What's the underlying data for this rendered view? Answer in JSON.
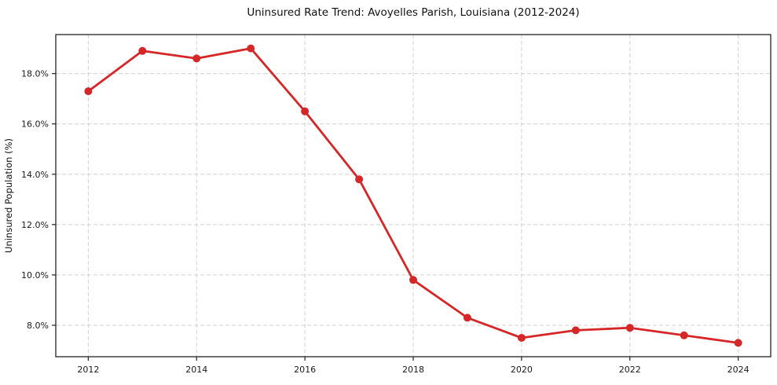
{
  "page": {
    "background": "#ffffff"
  },
  "chart_data": {
    "type": "line",
    "title": "Uninsured Rate Trend: Avoyelles Parish, Louisiana (2012-2024)",
    "xlabel": "",
    "ylabel": "Uninsured Population (%)",
    "x": [
      2012,
      2013,
      2014,
      2015,
      2016,
      2017,
      2018,
      2019,
      2020,
      2021,
      2022,
      2023,
      2024
    ],
    "series": [
      {
        "name": "Uninsured Rate",
        "values": [
          17.3,
          18.9,
          18.6,
          19.0,
          16.5,
          13.8,
          9.8,
          8.3,
          7.5,
          7.8,
          7.9,
          7.6,
          7.3
        ]
      }
    ],
    "xlim": [
      2011.4,
      2024.6
    ],
    "ylim": [
      6.75,
      19.55
    ],
    "xticks": {
      "values": [
        2012,
        2014,
        2016,
        2018,
        2020,
        2022,
        2024
      ],
      "labels": [
        "2012",
        "2014",
        "2016",
        "2018",
        "2020",
        "2022",
        "2024"
      ]
    },
    "yticks": {
      "values": [
        8,
        10,
        12,
        14,
        16,
        18
      ],
      "labels": [
        "8.0%",
        "10.0%",
        "12.0%",
        "14.0%",
        "16.0%",
        "18.0%"
      ]
    },
    "grid": true,
    "grid_style": "dashed",
    "legend": "none",
    "style": {
      "line_color": "#d62728",
      "marker": "circle",
      "marker_radius": 5,
      "line_width": 2.8,
      "grid_color": "#d0d0d0",
      "spine_color": "#222222",
      "tick_color": "#222222",
      "background": "#ffffff"
    }
  }
}
